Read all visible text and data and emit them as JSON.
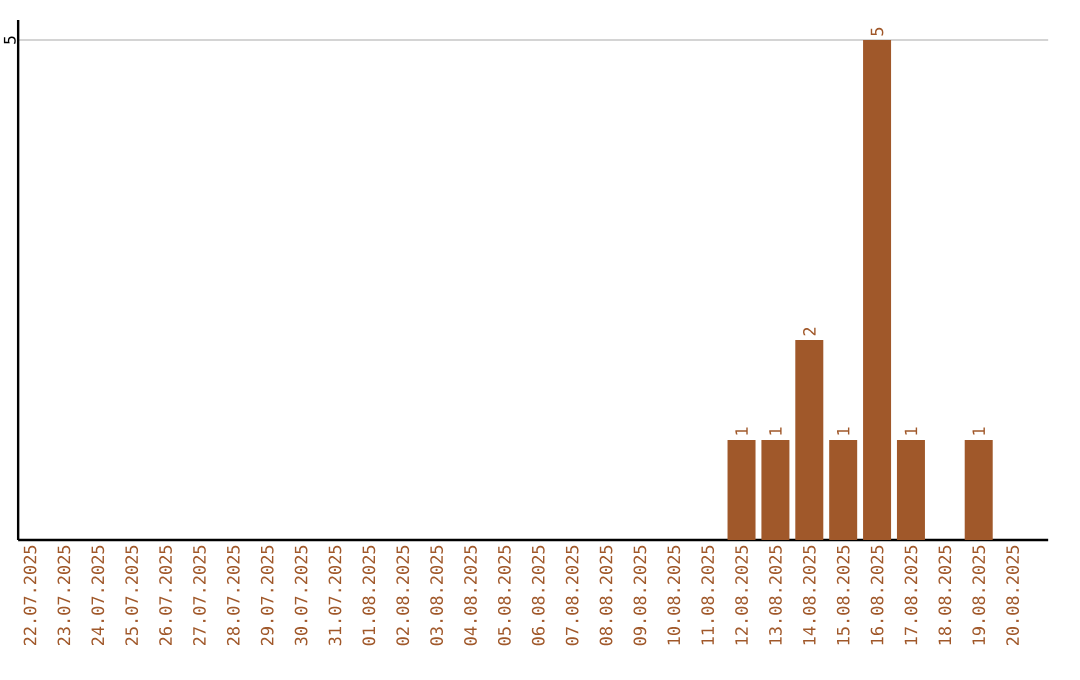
{
  "chart_data": {
    "type": "bar",
    "categories": [
      "22.07.2025",
      "23.07.2025",
      "24.07.2025",
      "25.07.2025",
      "26.07.2025",
      "27.07.2025",
      "28.07.2025",
      "29.07.2025",
      "30.07.2025",
      "31.07.2025",
      "01.08.2025",
      "02.08.2025",
      "03.08.2025",
      "04.08.2025",
      "05.08.2025",
      "06.08.2025",
      "07.08.2025",
      "08.08.2025",
      "09.08.2025",
      "10.08.2025",
      "11.08.2025",
      "12.08.2025",
      "13.08.2025",
      "14.08.2025",
      "15.08.2025",
      "16.08.2025",
      "17.08.2025",
      "18.08.2025",
      "19.08.2025",
      "20.08.2025"
    ],
    "values": [
      null,
      null,
      null,
      null,
      null,
      null,
      null,
      null,
      null,
      null,
      null,
      null,
      null,
      null,
      null,
      null,
      null,
      null,
      null,
      null,
      null,
      1,
      1,
      2,
      1,
      5,
      1,
      null,
      1,
      null
    ],
    "color": "#a0582a",
    "ylim": [
      0,
      5.2
    ],
    "yticks": [
      5
    ],
    "grid": "y",
    "data_labels": true
  }
}
